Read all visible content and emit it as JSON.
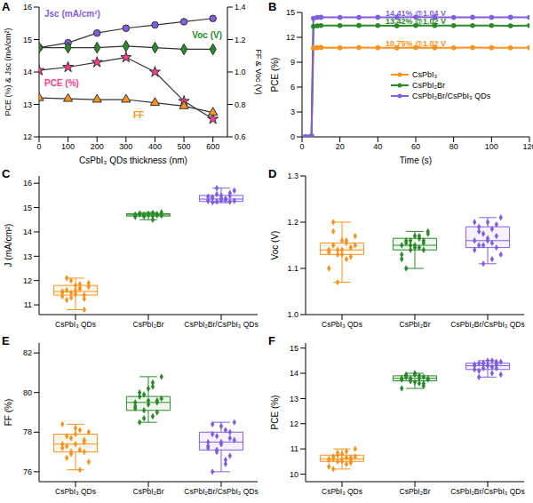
{
  "chart_data": [
    {
      "panel": "A",
      "type": "line",
      "x_label": "CsPbI₃ QDs thickness (nm)",
      "y_label": "PCE (%) & Jsc (mA/cm²)",
      "y2_label": "FF & Voc (V)",
      "x": [
        0,
        100,
        200,
        300,
        400,
        500,
        600
      ],
      "xlim": [
        0,
        650
      ],
      "xticks": [
        0,
        100,
        200,
        300,
        400,
        500,
        600
      ],
      "ylim": [
        12,
        16
      ],
      "yticks": [
        12,
        13,
        14,
        15,
        16
      ],
      "y2lim": [
        0.6,
        1.4
      ],
      "y2ticks": [
        0.6,
        0.8,
        {
          "value": 1,
          "label": "1.0"
        },
        1.2,
        1.4
      ],
      "series": [
        {
          "name": "Jsc (mA/cm²)",
          "color": "#7f5fe0",
          "marker": "circle",
          "values": [
            14.75,
            14.9,
            15.2,
            15.35,
            15.45,
            15.55,
            15.65
          ]
        },
        {
          "name": "Voc (V)",
          "color": "#2a8a2a",
          "marker": "diamond",
          "axis": "y2",
          "values": [
            1.15,
            1.15,
            1.15,
            1.16,
            1.15,
            1.14,
            1.14
          ]
        },
        {
          "name": "PCE (%)",
          "color": "#ff3d8a",
          "marker": "star",
          "values": [
            14.05,
            14.15,
            14.3,
            14.45,
            14.0,
            13.1,
            12.55
          ]
        },
        {
          "name": "FF",
          "color": "#f7931e",
          "marker": "triangle",
          "axis": "y2",
          "values": [
            0.84,
            0.835,
            0.83,
            0.83,
            0.81,
            0.79,
            0.75
          ]
        }
      ]
    },
    {
      "panel": "B",
      "type": "line",
      "x_label": "Time (s)",
      "y_label": "PCE (%)",
      "legend": "right",
      "x": [
        0,
        2,
        4,
        5,
        6,
        8,
        10,
        20,
        30,
        40,
        50,
        60,
        70,
        80,
        90,
        100,
        110,
        120
      ],
      "xlim": [
        0,
        120
      ],
      "xticks": [
        0,
        20,
        40,
        60,
        80,
        100,
        120
      ],
      "ylim": [
        0,
        15
      ],
      "yticks": [
        0,
        3,
        6,
        9,
        12,
        15
      ],
      "series": [
        {
          "name": "CsPbI₃",
          "color": "#f7931e",
          "marker": "circle",
          "annotation": "10.75% @1.02 V",
          "values": [
            0,
            0,
            0,
            0.1,
            10.7,
            10.75,
            10.78,
            10.74,
            10.76,
            10.75,
            10.73,
            10.77,
            10.75,
            10.74,
            10.76,
            10.75,
            10.74,
            10.75
          ]
        },
        {
          "name": "CsPbI₂Br",
          "color": "#2a8a2a",
          "marker": "circle",
          "annotation": "13.42% @1.02 V",
          "values": [
            0,
            0,
            0,
            0.1,
            13.3,
            13.4,
            13.42,
            13.41,
            13.43,
            13.42,
            13.4,
            13.42,
            13.43,
            13.41,
            13.42,
            13.42,
            13.4,
            13.42
          ]
        },
        {
          "name": "CsPbI₂Br/CsPbI₃ QDs",
          "color": "#7f5fe0",
          "marker": "circle",
          "annotation": "14.41% @1.04 V",
          "values": [
            0,
            0,
            0,
            0.1,
            14.3,
            14.4,
            14.42,
            14.41,
            14.4,
            14.42,
            14.41,
            14.43,
            14.41,
            14.4,
            14.42,
            14.41,
            14.42,
            14.41
          ]
        }
      ]
    },
    {
      "panel": "C",
      "type": "box",
      "y_label": "J (mA/cm²)",
      "ylim": [
        10.6,
        16.3
      ],
      "yticks": [
        11,
        12,
        13,
        14,
        15,
        16
      ],
      "groups": [
        {
          "name": "CsPbI₃ QDs",
          "color": "#f7931e",
          "marker": "diamond",
          "box": {
            "whisker_low": 10.8,
            "q1": 11.4,
            "median": 11.55,
            "q3": 11.8,
            "whisker_high": 12.1
          },
          "values": [
            11.5,
            11.6,
            11.3,
            11.8,
            11.7,
            11.4,
            11.9,
            11.55,
            11.2,
            12.0,
            11.45,
            11.65,
            10.8,
            11.75,
            11.35,
            12.1,
            11.5,
            11.6,
            11.85,
            11.25
          ]
        },
        {
          "name": "CsPbI₂Br",
          "color": "#2a8a2a",
          "marker": "diamond",
          "box": {
            "whisker_low": 14.5,
            "q1": 14.65,
            "median": 14.7,
            "q3": 14.75,
            "whisker_high": 14.8
          },
          "values": [
            14.7,
            14.72,
            14.68,
            14.75,
            14.66,
            14.7,
            14.8,
            14.62,
            14.74,
            14.69,
            14.71,
            14.5,
            14.73,
            14.67,
            14.7,
            14.76,
            14.64,
            14.72,
            14.78,
            14.69
          ]
        },
        {
          "name": "CsPbI₂Br/CsPbI₃ QDs",
          "color": "#7f5fe0",
          "marker": "diamond",
          "box": {
            "whisker_low": 15.2,
            "q1": 15.25,
            "median": 15.35,
            "q3": 15.5,
            "whisker_high": 15.8
          },
          "values": [
            15.3,
            15.4,
            15.25,
            15.5,
            15.35,
            15.6,
            15.28,
            15.45,
            15.22,
            15.8,
            15.38,
            15.32,
            15.48,
            15.7,
            15.27,
            15.42,
            15.55,
            15.3,
            15.36,
            15.24
          ]
        }
      ]
    },
    {
      "panel": "D",
      "type": "box",
      "y_label": "Voc (V)",
      "ylim": [
        1.0,
        1.3
      ],
      "yticks": [
        {
          "value": 1,
          "label": "1.0"
        },
        1.1,
        1.2,
        1.3
      ],
      "groups": [
        {
          "name": "CsPbI₃ QDs",
          "color": "#f7931e",
          "marker": "diamond",
          "box": {
            "whisker_low": 1.07,
            "q1": 1.13,
            "median": 1.14,
            "q3": 1.155,
            "whisker_high": 1.2
          },
          "values": [
            1.14,
            1.15,
            1.13,
            1.16,
            1.12,
            1.145,
            1.17,
            1.135,
            1.2,
            1.07,
            1.14,
            1.155,
            1.125,
            1.15,
            1.1,
            1.18,
            1.14,
            1.13,
            1.16,
            1.145
          ]
        },
        {
          "name": "CsPbI₂Br",
          "color": "#2a8a2a",
          "marker": "diamond",
          "box": {
            "whisker_low": 1.1,
            "q1": 1.14,
            "median": 1.15,
            "q3": 1.165,
            "whisker_high": 1.18
          },
          "values": [
            1.15,
            1.16,
            1.14,
            1.17,
            1.145,
            1.155,
            1.18,
            1.13,
            1.1,
            1.16,
            1.15,
            1.165,
            1.14,
            1.175,
            1.12,
            1.155,
            1.15,
            1.145,
            1.17,
            1.16
          ]
        },
        {
          "name": "CsPbI₂Br/CsPbI₃ QDs",
          "color": "#7f5fe0",
          "marker": "diamond",
          "box": {
            "whisker_low": 1.11,
            "q1": 1.145,
            "median": 1.16,
            "q3": 1.19,
            "whisker_high": 1.21
          },
          "values": [
            1.16,
            1.19,
            1.15,
            1.2,
            1.12,
            1.17,
            1.21,
            1.14,
            1.18,
            1.11,
            1.165,
            1.155,
            1.195,
            1.13,
            1.2,
            1.15,
            1.175,
            1.16,
            1.185,
            1.145
          ]
        }
      ]
    },
    {
      "panel": "E",
      "type": "box",
      "y_label": "FF (%)",
      "ylim": [
        75.5,
        82.5
      ],
      "yticks": [
        76,
        78,
        80,
        82
      ],
      "groups": [
        {
          "name": "CsPbI₃ QDs",
          "color": "#f7931e",
          "marker": "diamond",
          "box": {
            "whisker_low": 76.1,
            "q1": 77.0,
            "median": 77.4,
            "q3": 77.9,
            "whisker_high": 78.4
          },
          "values": [
            77.4,
            77.8,
            76.9,
            78.2,
            77.1,
            77.6,
            76.5,
            78.4,
            77.3,
            77.0,
            77.9,
            76.1,
            77.5,
            78.0,
            77.2,
            76.7,
            77.7,
            77.4,
            78.1,
            77.0
          ]
        },
        {
          "name": "CsPbI₂Br",
          "color": "#2a8a2a",
          "marker": "diamond",
          "box": {
            "whisker_low": 78.5,
            "q1": 79.1,
            "median": 79.5,
            "q3": 79.8,
            "whisker_high": 80.8
          },
          "values": [
            79.5,
            79.8,
            79.1,
            80.2,
            78.8,
            79.6,
            80.8,
            79.3,
            78.5,
            79.9,
            79.4,
            80.5,
            79.0,
            79.7,
            79.2,
            80.0,
            78.7,
            79.6,
            80.3,
            79.5
          ]
        },
        {
          "name": "CsPbI₂Br/CsPbI₃ QDs",
          "color": "#7f5fe0",
          "marker": "diamond",
          "box": {
            "whisker_low": 76.0,
            "q1": 77.1,
            "median": 77.5,
            "q3": 78.0,
            "whisker_high": 78.5
          },
          "values": [
            77.5,
            77.9,
            77.0,
            78.3,
            76.6,
            77.7,
            78.5,
            77.2,
            76.0,
            77.8,
            77.4,
            78.1,
            76.8,
            77.6,
            77.3,
            78.4,
            77.1,
            77.5,
            76.4,
            78.0
          ]
        }
      ]
    },
    {
      "panel": "F",
      "type": "box",
      "y_label": "PCE (%)",
      "ylim": [
        9.7,
        15.2
      ],
      "yticks": [
        10,
        11,
        12,
        13,
        14,
        15
      ],
      "groups": [
        {
          "name": "CsPbI₃ QDs",
          "color": "#f7931e",
          "marker": "diamond",
          "box": {
            "whisker_low": 10.2,
            "q1": 10.5,
            "median": 10.6,
            "q3": 10.75,
            "whisker_high": 11.0
          },
          "values": [
            10.6,
            10.7,
            10.5,
            10.8,
            10.4,
            10.65,
            11.0,
            10.55,
            10.2,
            10.75,
            10.6,
            10.9,
            10.45,
            10.7,
            10.3,
            10.6,
            10.85,
            10.5,
            10.65,
            10.55
          ]
        },
        {
          "name": "CsPbI₂Br",
          "color": "#2a8a2a",
          "marker": "diamond",
          "box": {
            "whisker_low": 13.4,
            "q1": 13.7,
            "median": 13.8,
            "q3": 13.9,
            "whisker_high": 14.0
          },
          "values": [
            13.8,
            13.9,
            13.7,
            14.0,
            13.6,
            13.85,
            13.75,
            13.4,
            13.95,
            13.8,
            13.65,
            13.9,
            13.5,
            13.8,
            13.75,
            13.85,
            13.7,
            13.95,
            13.8,
            13.6
          ]
        },
        {
          "name": "CsPbI₂Br/CsPbI₃ QDs",
          "color": "#7f5fe0",
          "marker": "diamond",
          "box": {
            "whisker_low": 13.85,
            "q1": 14.15,
            "median": 14.3,
            "q3": 14.4,
            "whisker_high": 14.5
          },
          "values": [
            14.3,
            14.4,
            14.2,
            14.5,
            14.0,
            14.35,
            14.45,
            14.15,
            13.85,
            14.4,
            14.3,
            14.25,
            14.45,
            13.95,
            14.35,
            14.1,
            14.4,
            14.3,
            14.5,
            14.2
          ]
        }
      ]
    }
  ]
}
